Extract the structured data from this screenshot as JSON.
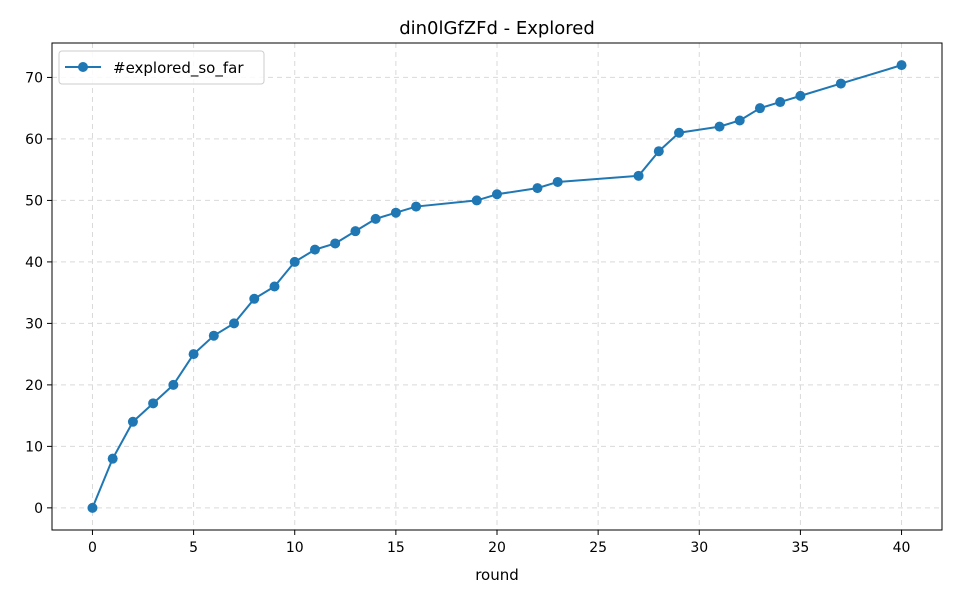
{
  "chart_data": {
    "type": "line",
    "title": "din0lGfZFd - Explored",
    "xlabel": "round",
    "ylabel": "",
    "xlim": [
      -2,
      42
    ],
    "ylim": [
      -3.6,
      75.6
    ],
    "xticks": [
      0,
      5,
      10,
      15,
      20,
      25,
      30,
      35,
      40
    ],
    "yticks": [
      0,
      10,
      20,
      30,
      40,
      50,
      60,
      70
    ],
    "grid": true,
    "legend_position": "top-left",
    "series": [
      {
        "name": "#explored_so_far",
        "color": "#1f77b4",
        "marker": "circle",
        "x": [
          0,
          1,
          2,
          3,
          4,
          5,
          6,
          7,
          8,
          9,
          10,
          11,
          12,
          13,
          14,
          15,
          16,
          19,
          20,
          22,
          23,
          27,
          28,
          29,
          31,
          32,
          33,
          34,
          35,
          37,
          40
        ],
        "y": [
          0,
          8,
          14,
          17,
          20,
          25,
          28,
          30,
          34,
          36,
          40,
          42,
          43,
          45,
          47,
          48,
          49,
          50,
          51,
          52,
          53,
          54,
          58,
          61,
          62,
          63,
          65,
          66,
          67,
          69,
          72
        ]
      }
    ]
  }
}
